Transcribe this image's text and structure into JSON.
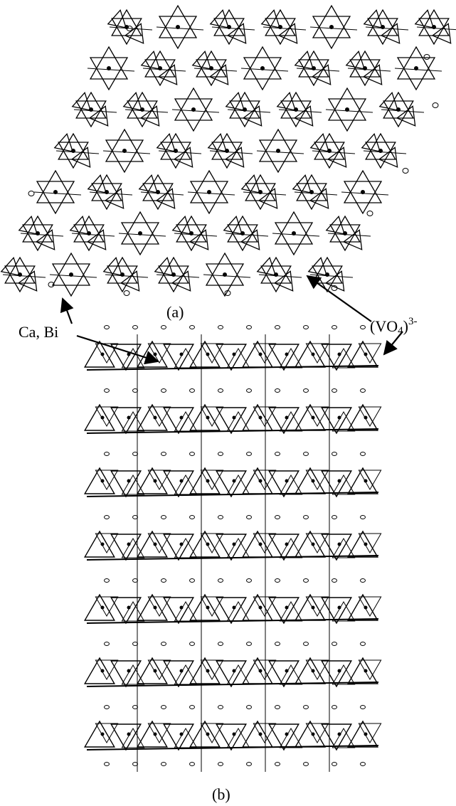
{
  "panel_a": {
    "label": "(a)"
  },
  "panel_b": {
    "label": "(b)"
  },
  "annotations": {
    "ca_bi": "Ca, Bi",
    "vo4": {
      "open": "(VO",
      "sub": "4",
      "close": ")",
      "sup": "3-"
    }
  }
}
